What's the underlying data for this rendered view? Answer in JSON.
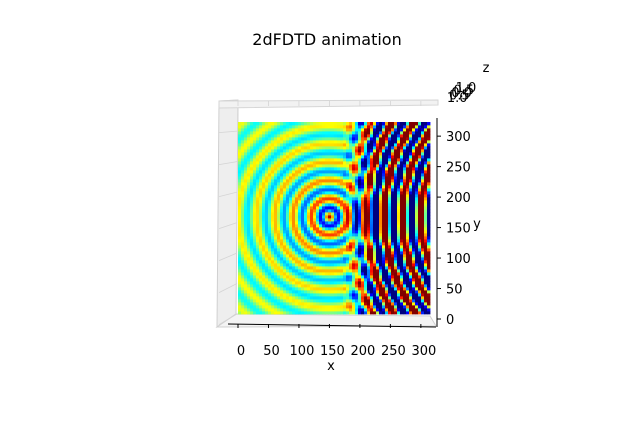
{
  "chart_data": {
    "type": "surface-3d",
    "title": "2dFDTD animation",
    "xlabel": "x",
    "ylabel": "y",
    "zlabel": "z",
    "xticks": [
      "0",
      "50",
      "100",
      "150",
      "200",
      "250",
      "300"
    ],
    "yticks": [
      "0",
      "50",
      "100",
      "150",
      "200",
      "250",
      "300"
    ],
    "zticks": [
      "1.0",
      "0.5",
      "0.0",
      "0.5",
      "1.0"
    ],
    "xlim": [
      0,
      315
    ],
    "ylim": [
      0,
      315
    ],
    "zlim": [
      -1,
      1
    ],
    "colormap": "jet",
    "source": {
      "x": 150,
      "y": 160
    },
    "grid": true
  }
}
